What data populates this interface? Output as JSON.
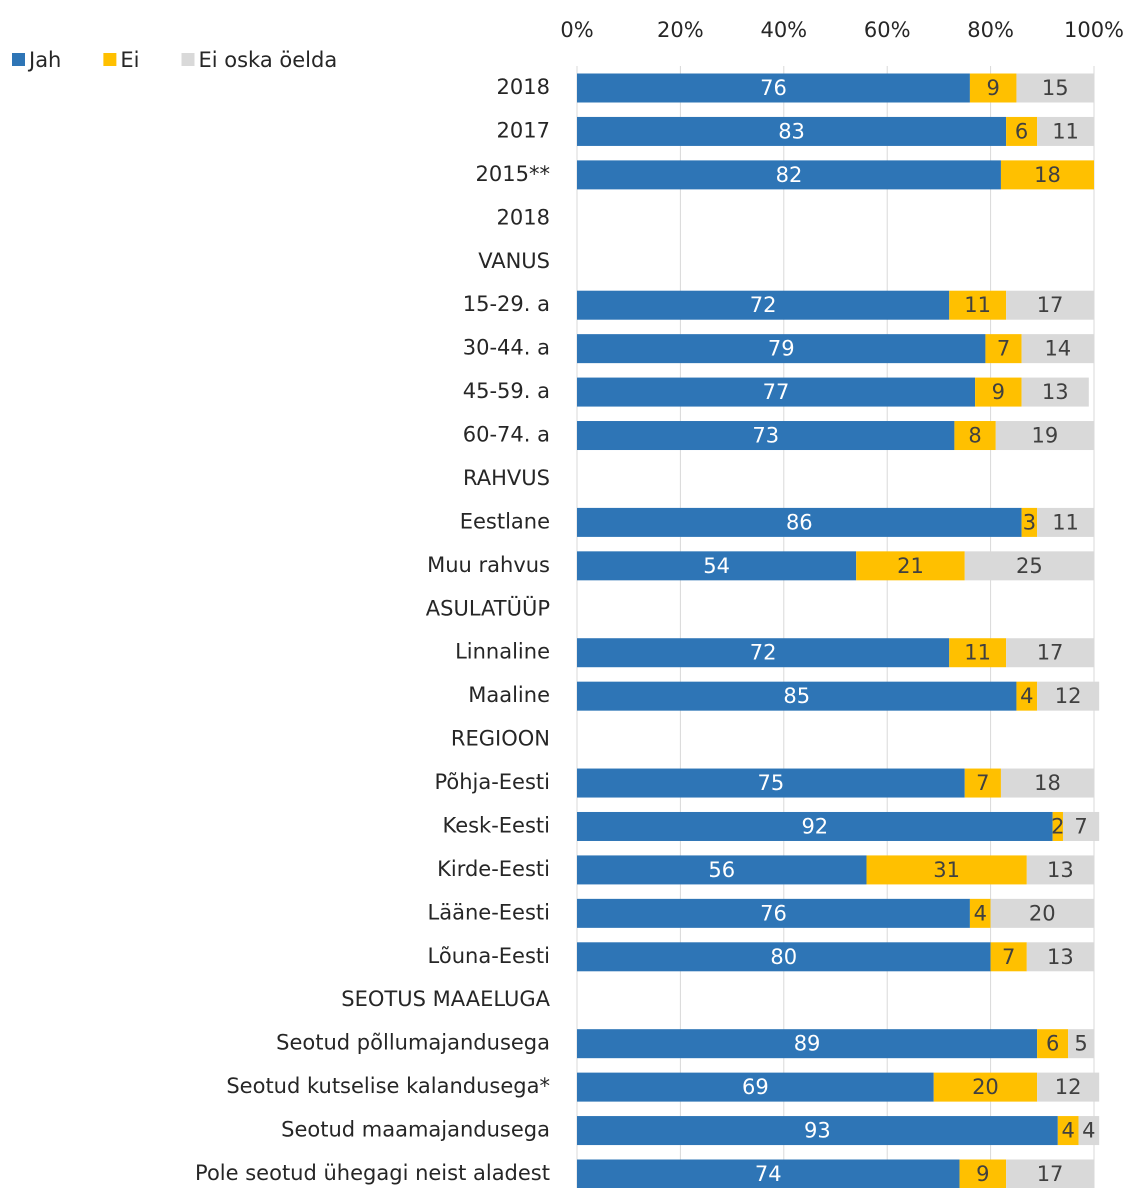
{
  "chart_data": {
    "type": "stacked-bar-horizontal",
    "categories": [
      "2018",
      "2017",
      "2015**",
      "2018",
      "VANUS",
      "15-29. a",
      "30-44. a",
      "45-59. a",
      "60-74. a",
      "RAHVUS",
      "Eestlane",
      "Muu rahvus",
      "ASULATÜÜP",
      "Linnaline",
      "Maaline",
      "REGIOON",
      "Põhja-Eesti",
      "Kesk-Eesti",
      "Kirde-Eesti",
      "Lääne-Eesti",
      "Lõuna-Eesti",
      "SEOTUS MAAELUGA",
      "Seotud põllumajandusega",
      "Seotud kutselise kalandusega*",
      "Seotud maamajandusega",
      "Pole seotud ühegagi neist aladest"
    ],
    "series": [
      {
        "name": "Jah",
        "color": "#2e75b6",
        "values": [
          76,
          83,
          82,
          null,
          null,
          72,
          79,
          77,
          73,
          null,
          86,
          54,
          null,
          72,
          85,
          null,
          75,
          92,
          56,
          76,
          80,
          null,
          89,
          69,
          93,
          74
        ]
      },
      {
        "name": "Ei",
        "color": "#ffc000",
        "values": [
          9,
          6,
          18,
          null,
          null,
          11,
          7,
          9,
          8,
          null,
          3,
          21,
          null,
          11,
          4,
          null,
          7,
          2,
          31,
          4,
          7,
          null,
          6,
          20,
          4,
          9
        ]
      },
      {
        "name": "Ei oska öelda",
        "color": "#d9d9d9",
        "values": [
          15,
          11,
          null,
          null,
          null,
          17,
          14,
          13,
          19,
          null,
          11,
          25,
          null,
          17,
          12,
          null,
          18,
          7,
          13,
          20,
          13,
          null,
          5,
          12,
          4,
          17
        ]
      }
    ],
    "xlim": [
      0,
      100
    ],
    "xticks": [
      {
        "value": 0,
        "label": "0%"
      },
      {
        "value": 20,
        "label": "20%"
      },
      {
        "value": 40,
        "label": "40%"
      },
      {
        "value": 60,
        "label": "60%"
      },
      {
        "value": 80,
        "label": "80%"
      },
      {
        "value": 100,
        "label": "100%"
      }
    ],
    "grid": true,
    "legend": "top-left"
  }
}
